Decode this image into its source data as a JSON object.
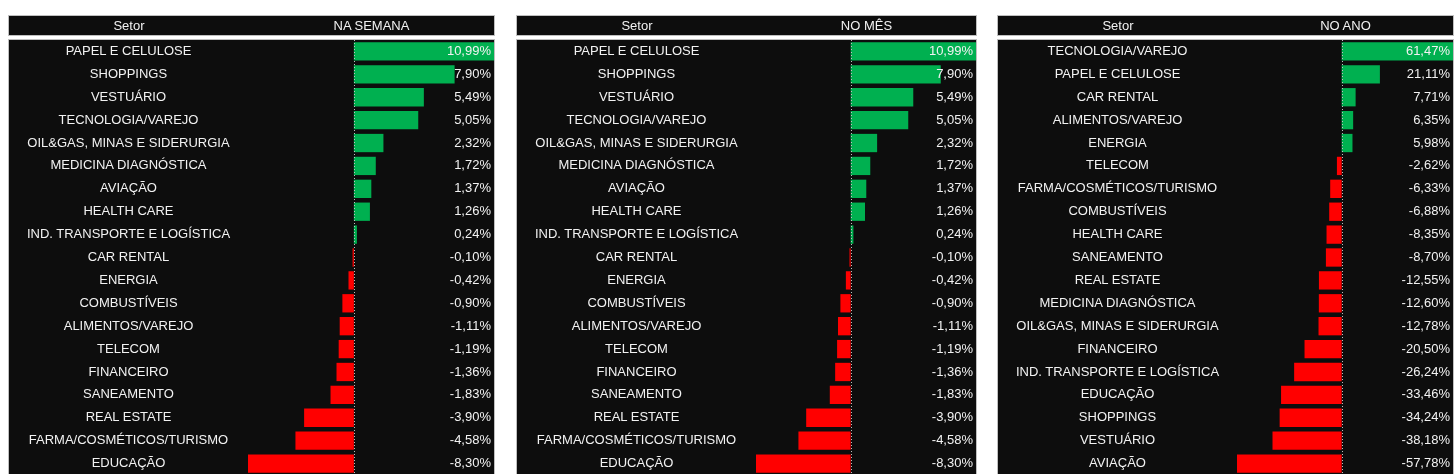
{
  "chart_data": [
    {
      "type": "bar",
      "orientation": "horizontal",
      "title": "NA SEMANA",
      "ylabel": "Setor",
      "categories": [
        "PAPEL E CELULOSE",
        "SHOPPINGS",
        "VESTUÁRIO",
        "TECNOLOGIA/VAREJO",
        "OIL&GAS, MINAS E SIDERURGIA",
        "MEDICINA DIAGNÓSTICA",
        "AVIAÇÃO",
        "HEALTH CARE",
        "IND. TRANSPORTE E LOGÍSTICA",
        "CAR RENTAL",
        "ENERGIA",
        "COMBUSTÍVEIS",
        "ALIMENTOS/VAREJO",
        "TELECOM",
        "FINANCEIRO",
        "SANEAMENTO",
        "REAL ESTATE",
        "FARMA/COSMÉTICOS/TURISMO",
        "EDUCAÇÃO"
      ],
      "values": [
        10.99,
        7.9,
        5.49,
        5.05,
        2.32,
        1.72,
        1.37,
        1.26,
        0.24,
        -0.1,
        -0.42,
        -0.9,
        -1.11,
        -1.19,
        -1.36,
        -1.83,
        -3.9,
        -4.58,
        -8.3
      ],
      "colors": [
        "#00b050",
        "#00b050",
        "#00b050",
        "#00b050",
        "#00b050",
        "#00b050",
        "#00b050",
        "#00b050",
        "#00b050",
        "#ff0000",
        "#ff0000",
        "#ff0000",
        "#ff0000",
        "#ff0000",
        "#ff0000",
        "#ff0000",
        "#ff0000",
        "#ff0000",
        "#ff0000"
      ],
      "value_labels": [
        "10,99%",
        "7,90%",
        "5,49%",
        "5,05%",
        "2,32%",
        "1,72%",
        "1,37%",
        "1,26%",
        "0,24%",
        "-0,10%",
        "-0,42%",
        "-0,90%",
        "-1,11%",
        "-1,19%",
        "-1,36%",
        "-1,83%",
        "-3,90%",
        "-4,58%",
        "-8,30%"
      ],
      "xlim": [
        -8.3,
        10.99
      ],
      "tick_labels": "y",
      "ref_lines": [
        {
          "axis": "x",
          "value": 0,
          "color": "#bfbfbf",
          "line_style": "dotted"
        }
      ]
    },
    {
      "type": "bar",
      "orientation": "horizontal",
      "title": "NO MÊS",
      "ylabel": "Setor",
      "categories": [
        "PAPEL E CELULOSE",
        "SHOPPINGS",
        "VESTUÁRIO",
        "TECNOLOGIA/VAREJO",
        "OIL&GAS, MINAS E SIDERURGIA",
        "MEDICINA DIAGNÓSTICA",
        "AVIAÇÃO",
        "HEALTH CARE",
        "IND. TRANSPORTE E LOGÍSTICA",
        "CAR RENTAL",
        "ENERGIA",
        "COMBUSTÍVEIS",
        "ALIMENTOS/VAREJO",
        "TELECOM",
        "FINANCEIRO",
        "SANEAMENTO",
        "REAL ESTATE",
        "FARMA/COSMÉTICOS/TURISMO",
        "EDUCAÇÃO"
      ],
      "values": [
        10.99,
        7.9,
        5.49,
        5.05,
        2.32,
        1.72,
        1.37,
        1.26,
        0.24,
        -0.1,
        -0.42,
        -0.9,
        -1.11,
        -1.19,
        -1.36,
        -1.83,
        -3.9,
        -4.58,
        -8.3
      ],
      "colors": [
        "#00b050",
        "#00b050",
        "#00b050",
        "#00b050",
        "#00b050",
        "#00b050",
        "#00b050",
        "#00b050",
        "#00b050",
        "#ff0000",
        "#ff0000",
        "#ff0000",
        "#ff0000",
        "#ff0000",
        "#ff0000",
        "#ff0000",
        "#ff0000",
        "#ff0000",
        "#ff0000"
      ],
      "value_labels": [
        "10,99%",
        "7,90%",
        "5,49%",
        "5,05%",
        "2,32%",
        "1,72%",
        "1,37%",
        "1,26%",
        "0,24%",
        "-0,10%",
        "-0,42%",
        "-0,90%",
        "-1,11%",
        "-1,19%",
        "-1,36%",
        "-1,83%",
        "-3,90%",
        "-4,58%",
        "-8,30%"
      ],
      "xlim": [
        -8.3,
        10.99
      ],
      "tick_labels": "y",
      "ref_lines": [
        {
          "axis": "x",
          "value": 0,
          "color": "#bfbfbf",
          "line_style": "dotted"
        }
      ]
    },
    {
      "type": "bar",
      "orientation": "horizontal",
      "title": "NO ANO",
      "ylabel": "Setor",
      "categories": [
        "TECNOLOGIA/VAREJO",
        "PAPEL E CELULOSE",
        "CAR RENTAL",
        "ALIMENTOS/VAREJO",
        "ENERGIA",
        "TELECOM",
        "FARMA/COSMÉTICOS/TURISMO",
        "COMBUSTÍVEIS",
        "HEALTH CARE",
        "SANEAMENTO",
        "REAL ESTATE",
        "MEDICINA DIAGNÓSTICA",
        "OIL&GAS, MINAS E SIDERURGIA",
        "FINANCEIRO",
        "IND. TRANSPORTE E LOGÍSTICA",
        "EDUCAÇÃO",
        "SHOPPINGS",
        "VESTUÁRIO",
        "AVIAÇÃO"
      ],
      "values": [
        61.47,
        21.11,
        7.71,
        6.35,
        5.98,
        -2.62,
        -6.33,
        -6.88,
        -8.35,
        -8.7,
        -12.55,
        -12.6,
        -12.78,
        -20.5,
        -26.24,
        -33.46,
        -34.24,
        -38.18,
        -57.78
      ],
      "colors": [
        "#00b050",
        "#00b050",
        "#00b050",
        "#00b050",
        "#00b050",
        "#ff0000",
        "#ff0000",
        "#ff0000",
        "#ff0000",
        "#ff0000",
        "#ff0000",
        "#ff0000",
        "#ff0000",
        "#ff0000",
        "#ff0000",
        "#ff0000",
        "#ff0000",
        "#ff0000",
        "#ff0000"
      ],
      "value_labels": [
        "61,47%",
        "21,11%",
        "7,71%",
        "6,35%",
        "5,98%",
        "-2,62%",
        "-6,33%",
        "-6,88%",
        "-8,35%",
        "-8,70%",
        "-12,55%",
        "-12,60%",
        "-12,78%",
        "-20,50%",
        "-26,24%",
        "-33,46%",
        "-34,24%",
        "-38,18%",
        "-57,78%"
      ],
      "xlim": [
        -57.78,
        61.47
      ],
      "tick_labels": "y",
      "ref_lines": [
        {
          "axis": "x",
          "value": 0,
          "color": "#bfbfbf",
          "line_style": "dotted"
        }
      ]
    }
  ]
}
